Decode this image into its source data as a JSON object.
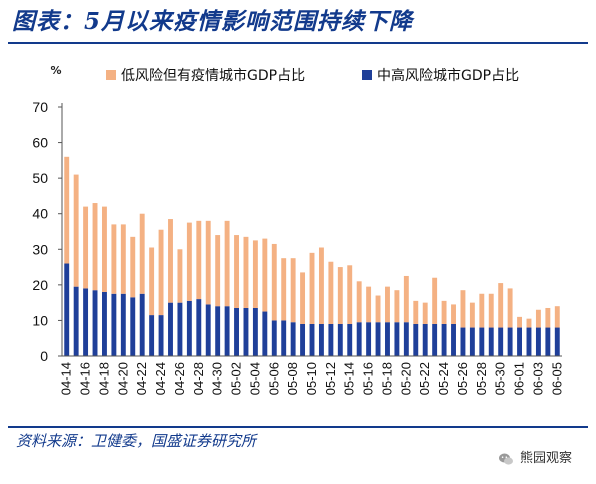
{
  "title": "图表：5月以来疫情影响范围持续下降",
  "source": "资料来源：卫健委，国盛证券研究所",
  "watermark": "熊园观察",
  "colors": {
    "title": "#123a8c",
    "low_risk": "#f4b183",
    "mid_high_risk": "#1f3f99"
  },
  "chart_data": {
    "type": "bar",
    "stacked": true,
    "ylabel": "%",
    "ylim": [
      0,
      70
    ],
    "yticks": [
      0,
      10,
      20,
      30,
      40,
      50,
      60,
      70
    ],
    "legend_position": "top",
    "categories": [
      "04-14",
      "04-15",
      "04-16",
      "04-17",
      "04-18",
      "04-19",
      "04-20",
      "04-21",
      "04-22",
      "04-23",
      "04-24",
      "04-25",
      "04-26",
      "04-27",
      "04-28",
      "04-29",
      "04-30",
      "05-01",
      "05-02",
      "05-03",
      "05-04",
      "05-05",
      "05-06",
      "05-07",
      "05-08",
      "05-09",
      "05-10",
      "05-11",
      "05-12",
      "05-13",
      "05-14",
      "05-15",
      "05-16",
      "05-17",
      "05-18",
      "05-19",
      "05-20",
      "05-21",
      "05-22",
      "05-23",
      "05-24",
      "05-25",
      "05-26",
      "05-27",
      "05-28",
      "05-29",
      "05-30",
      "05-31",
      "06-01",
      "06-02",
      "06-03",
      "06-04",
      "06-05"
    ],
    "xtick_labels": [
      "04-14",
      "04-16",
      "04-18",
      "04-20",
      "04-22",
      "04-24",
      "04-26",
      "04-28",
      "04-30",
      "05-02",
      "05-04",
      "05-06",
      "05-08",
      "05-10",
      "05-12",
      "05-14",
      "05-16",
      "05-18",
      "05-20",
      "05-22",
      "05-24",
      "05-26",
      "05-28",
      "05-30",
      "06-01",
      "06-03",
      "06-05"
    ],
    "series": [
      {
        "name": "中高风险城市GDP占比",
        "values": [
          26,
          19.5,
          19,
          18.5,
          18,
          17.5,
          17.5,
          16.5,
          17.5,
          11.5,
          11.5,
          15,
          15,
          15.5,
          16,
          14.5,
          14,
          14,
          13.5,
          13.5,
          13.5,
          12.5,
          10,
          10,
          9.5,
          9,
          9,
          9,
          9,
          9,
          9,
          9.5,
          9.5,
          9.5,
          9.5,
          9.5,
          9.5,
          9,
          9,
          9,
          9,
          9,
          8,
          8,
          8,
          8,
          8,
          8,
          8,
          8,
          8,
          8,
          8
        ]
      },
      {
        "name": "低风险但有疫情城市GDP占比",
        "values": [
          30,
          31.5,
          23,
          24.5,
          24,
          19.5,
          19.5,
          17,
          22.5,
          19,
          24,
          23.5,
          15,
          22,
          22,
          23.5,
          20,
          24,
          20.5,
          20,
          19,
          20.5,
          21.5,
          17.5,
          18,
          14.5,
          20,
          21.5,
          17.5,
          16,
          16.5,
          11.5,
          10,
          7.5,
          10,
          9,
          13,
          6.5,
          6,
          13,
          6.5,
          5.5,
          10.5,
          7,
          9.5,
          9.5,
          12.5,
          11,
          3,
          2.5,
          5,
          5.5,
          6
        ]
      }
    ]
  }
}
